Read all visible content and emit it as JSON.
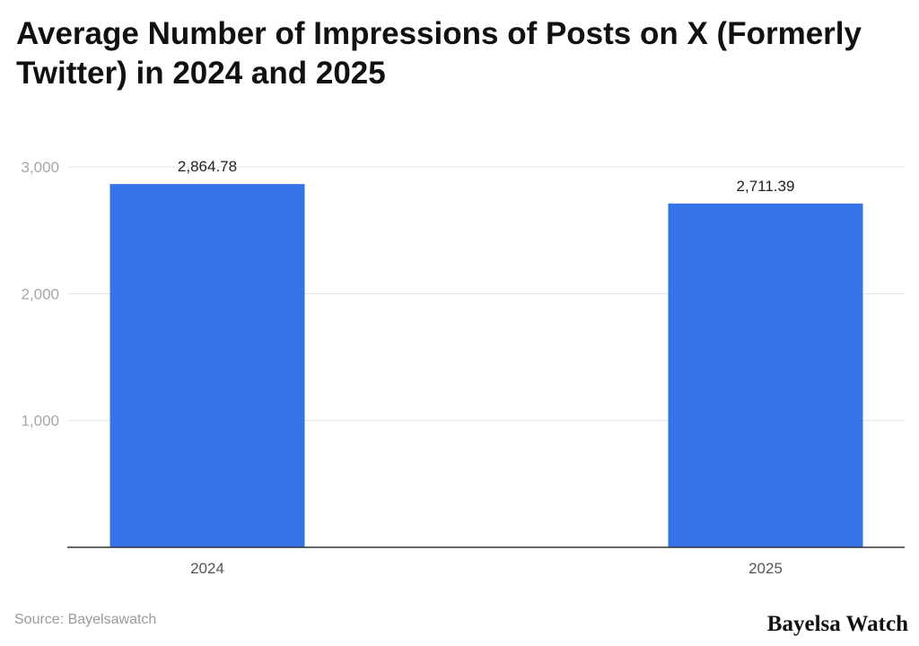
{
  "title": "Average Number of Impressions of Posts on X (Formerly Twitter) in 2024 and 2025",
  "source": "Source: Bayelsawatch",
  "brand": "Bayelsa Watch",
  "chart_data": {
    "type": "bar",
    "title": "Average Number of Impressions of Posts on X (Formerly Twitter) in 2024 and 2025",
    "xlabel": "",
    "ylabel": "",
    "categories": [
      "2024",
      "2025"
    ],
    "values": [
      2864.78,
      2711.39
    ],
    "value_labels": [
      "2,864.78",
      "2,711.39"
    ],
    "ylim": [
      0,
      3000
    ],
    "yticks": [
      1000,
      2000,
      3000
    ],
    "ytick_labels": [
      "1,000",
      "2,000",
      "3,000"
    ],
    "grid": true,
    "legend": "none",
    "bar_color": "#3474e8"
  }
}
